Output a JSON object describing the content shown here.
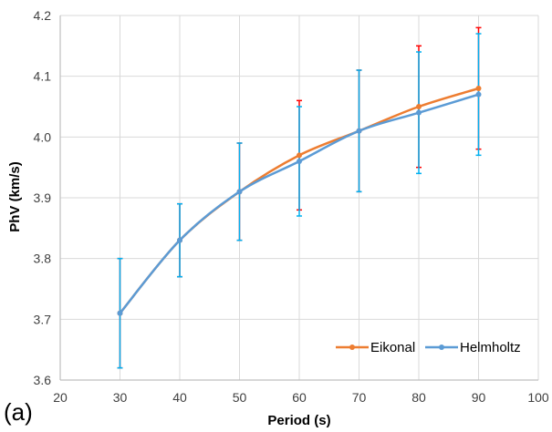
{
  "panel_label": "(a)",
  "colors": {
    "eikonal_line": "#ED7D31",
    "eikonal_error": "#FF0000",
    "helmholtz_line": "#5B9BD5",
    "helmholtz_error": "#00B0F0",
    "grid": "#D9D9D9",
    "axis": "#BFBFBF"
  },
  "chart_data": {
    "type": "line",
    "title": "",
    "xlabel": "Period (s)",
    "ylabel": "PhV (km/s)",
    "xlim": [
      20,
      100
    ],
    "ylim": [
      3.6,
      4.2
    ],
    "x_ticks": [
      20,
      30,
      40,
      50,
      60,
      70,
      80,
      90,
      100
    ],
    "y_ticks": [
      "3.6",
      "3.7",
      "3.8",
      "3.9",
      "4.0",
      "4.1",
      "4.2"
    ],
    "grid": true,
    "legend_position": "bottom-right",
    "series": [
      {
        "name": "Eikonal",
        "x": [
          30,
          40,
          50,
          60,
          70,
          80,
          90
        ],
        "y": [
          3.71,
          3.83,
          3.91,
          3.97,
          4.01,
          4.05,
          4.08
        ],
        "error": [
          0.09,
          0.06,
          0.08,
          0.09,
          0.1,
          0.1,
          0.1
        ]
      },
      {
        "name": "Helmholtz",
        "x": [
          30,
          40,
          50,
          60,
          70,
          80,
          90
        ],
        "y": [
          3.71,
          3.83,
          3.91,
          3.96,
          4.01,
          4.04,
          4.07
        ],
        "error": [
          0.09,
          0.06,
          0.08,
          0.09,
          0.1,
          0.1,
          0.1
        ]
      }
    ]
  }
}
